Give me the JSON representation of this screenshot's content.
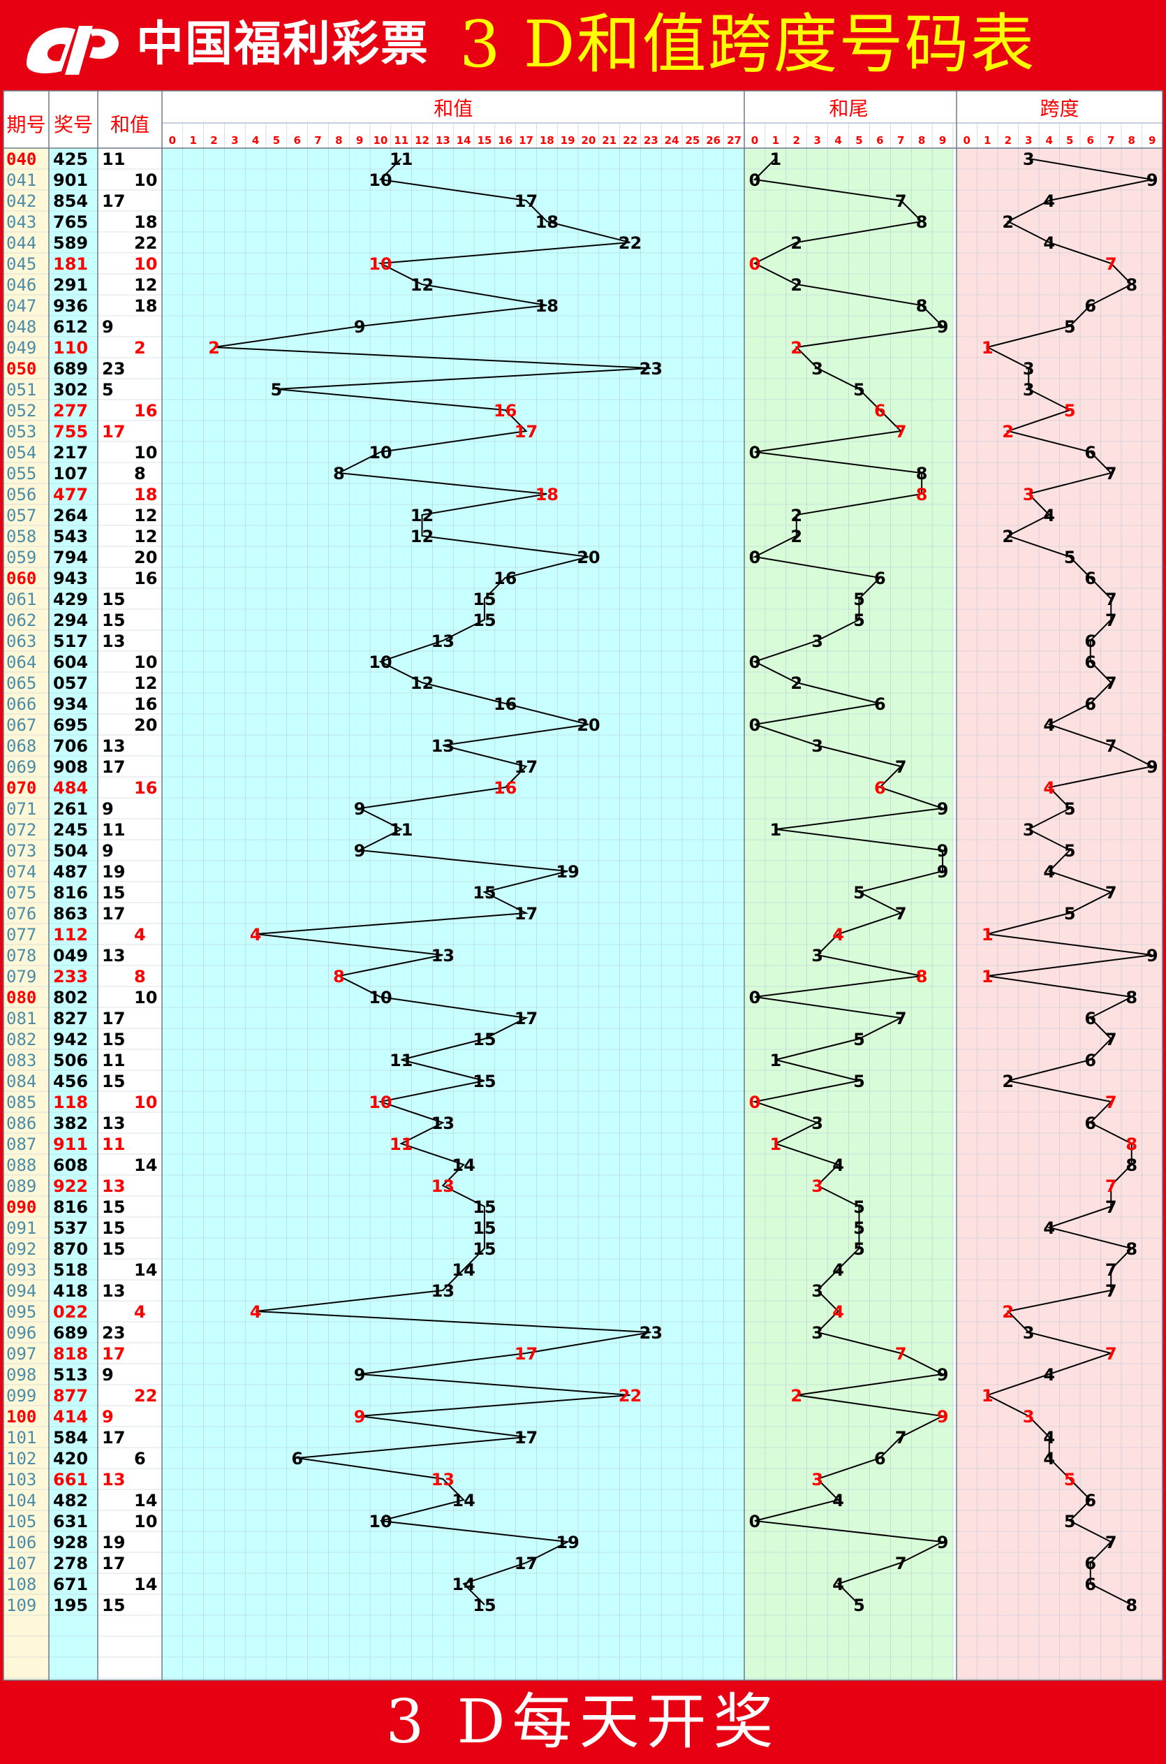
{
  "header": {
    "logo_text": "中国福利彩票",
    "title": "3 D和值跨度号码表"
  },
  "footer": {
    "text": "3 D每天开奖"
  },
  "colors": {
    "frame": "#e60012",
    "title_yellow": "#ffff00",
    "section_sum_bg": "#c8ffff",
    "section_tail_bg": "#d8fcd8",
    "section_span_bg": "#fde0e0",
    "left_panel_bg": "#fff8d8",
    "highlight_red": "#ff0000",
    "issue_blue": "#4a8ba8"
  },
  "chart_data": {
    "type": "table",
    "columns": {
      "issue": "期号",
      "number": "奖号",
      "sum": "和值"
    },
    "sections": {
      "sum": "和值",
      "tail": "和尾",
      "span": "跨度"
    },
    "sum_ticks": [
      "0",
      "1",
      "2",
      "3",
      "4",
      "5",
      "6",
      "7",
      "8",
      "9",
      "10",
      "11",
      "12",
      "13",
      "14",
      "15",
      "16",
      "17",
      "18",
      "19",
      "20",
      "21",
      "22",
      "23",
      "24",
      "25",
      "26",
      "27"
    ],
    "digit_ticks": [
      "0",
      "1",
      "2",
      "3",
      "4",
      "5",
      "6",
      "7",
      "8",
      "9"
    ],
    "rows": [
      {
        "issue": "040",
        "number": "425",
        "sum": 11,
        "tail": 1,
        "span": 3,
        "hl": false
      },
      {
        "issue": "041",
        "number": "901",
        "sum": 10,
        "tail": 0,
        "span": 9,
        "hl": false
      },
      {
        "issue": "042",
        "number": "854",
        "sum": 17,
        "tail": 7,
        "span": 4,
        "hl": false
      },
      {
        "issue": "043",
        "number": "765",
        "sum": 18,
        "tail": 8,
        "span": 2,
        "hl": false
      },
      {
        "issue": "044",
        "number": "589",
        "sum": 22,
        "tail": 2,
        "span": 4,
        "hl": false
      },
      {
        "issue": "045",
        "number": "181",
        "sum": 10,
        "tail": 0,
        "span": 7,
        "hl": true
      },
      {
        "issue": "046",
        "number": "291",
        "sum": 12,
        "tail": 2,
        "span": 8,
        "hl": false
      },
      {
        "issue": "047",
        "number": "936",
        "sum": 18,
        "tail": 8,
        "span": 6,
        "hl": false
      },
      {
        "issue": "048",
        "number": "612",
        "sum": 9,
        "tail": 9,
        "span": 5,
        "hl": false
      },
      {
        "issue": "049",
        "number": "110",
        "sum": 2,
        "tail": 2,
        "span": 1,
        "hl": true
      },
      {
        "issue": "050",
        "number": "689",
        "sum": 23,
        "tail": 3,
        "span": 3,
        "hl": false
      },
      {
        "issue": "051",
        "number": "302",
        "sum": 5,
        "tail": 5,
        "span": 3,
        "hl": false
      },
      {
        "issue": "052",
        "number": "277",
        "sum": 16,
        "tail": 6,
        "span": 5,
        "hl": true
      },
      {
        "issue": "053",
        "number": "755",
        "sum": 17,
        "tail": 7,
        "span": 2,
        "hl": true
      },
      {
        "issue": "054",
        "number": "217",
        "sum": 10,
        "tail": 0,
        "span": 6,
        "hl": false
      },
      {
        "issue": "055",
        "number": "107",
        "sum": 8,
        "tail": 8,
        "span": 7,
        "hl": false
      },
      {
        "issue": "056",
        "number": "477",
        "sum": 18,
        "tail": 8,
        "span": 3,
        "hl": true
      },
      {
        "issue": "057",
        "number": "264",
        "sum": 12,
        "tail": 2,
        "span": 4,
        "hl": false
      },
      {
        "issue": "058",
        "number": "543",
        "sum": 12,
        "tail": 2,
        "span": 2,
        "hl": false
      },
      {
        "issue": "059",
        "number": "794",
        "sum": 20,
        "tail": 0,
        "span": 5,
        "hl": false
      },
      {
        "issue": "060",
        "number": "943",
        "sum": 16,
        "tail": 6,
        "span": 6,
        "hl": false
      },
      {
        "issue": "061",
        "number": "429",
        "sum": 15,
        "tail": 5,
        "span": 7,
        "hl": false
      },
      {
        "issue": "062",
        "number": "294",
        "sum": 15,
        "tail": 5,
        "span": 7,
        "hl": false
      },
      {
        "issue": "063",
        "number": "517",
        "sum": 13,
        "tail": 3,
        "span": 6,
        "hl": false
      },
      {
        "issue": "064",
        "number": "604",
        "sum": 10,
        "tail": 0,
        "span": 6,
        "hl": false
      },
      {
        "issue": "065",
        "number": "057",
        "sum": 12,
        "tail": 2,
        "span": 7,
        "hl": false
      },
      {
        "issue": "066",
        "number": "934",
        "sum": 16,
        "tail": 6,
        "span": 6,
        "hl": false
      },
      {
        "issue": "067",
        "number": "695",
        "sum": 20,
        "tail": 0,
        "span": 4,
        "hl": false
      },
      {
        "issue": "068",
        "number": "706",
        "sum": 13,
        "tail": 3,
        "span": 7,
        "hl": false
      },
      {
        "issue": "069",
        "number": "908",
        "sum": 17,
        "tail": 7,
        "span": 9,
        "hl": false
      },
      {
        "issue": "070",
        "number": "484",
        "sum": 16,
        "tail": 6,
        "span": 4,
        "hl": true
      },
      {
        "issue": "071",
        "number": "261",
        "sum": 9,
        "tail": 9,
        "span": 5,
        "hl": false
      },
      {
        "issue": "072",
        "number": "245",
        "sum": 11,
        "tail": 1,
        "span": 3,
        "hl": false
      },
      {
        "issue": "073",
        "number": "504",
        "sum": 9,
        "tail": 9,
        "span": 5,
        "hl": false
      },
      {
        "issue": "074",
        "number": "487",
        "sum": 19,
        "tail": 9,
        "span": 4,
        "hl": false
      },
      {
        "issue": "075",
        "number": "816",
        "sum": 15,
        "tail": 5,
        "span": 7,
        "hl": false
      },
      {
        "issue": "076",
        "number": "863",
        "sum": 17,
        "tail": 7,
        "span": 5,
        "hl": false
      },
      {
        "issue": "077",
        "number": "112",
        "sum": 4,
        "tail": 4,
        "span": 1,
        "hl": true
      },
      {
        "issue": "078",
        "number": "049",
        "sum": 13,
        "tail": 3,
        "span": 9,
        "hl": false
      },
      {
        "issue": "079",
        "number": "233",
        "sum": 8,
        "tail": 8,
        "span": 1,
        "hl": true
      },
      {
        "issue": "080",
        "number": "802",
        "sum": 10,
        "tail": 0,
        "span": 8,
        "hl": false
      },
      {
        "issue": "081",
        "number": "827",
        "sum": 17,
        "tail": 7,
        "span": 6,
        "hl": false
      },
      {
        "issue": "082",
        "number": "942",
        "sum": 15,
        "tail": 5,
        "span": 7,
        "hl": false
      },
      {
        "issue": "083",
        "number": "506",
        "sum": 11,
        "tail": 1,
        "span": 6,
        "hl": false
      },
      {
        "issue": "084",
        "number": "456",
        "sum": 15,
        "tail": 5,
        "span": 2,
        "hl": false
      },
      {
        "issue": "085",
        "number": "118",
        "sum": 10,
        "tail": 0,
        "span": 7,
        "hl": true
      },
      {
        "issue": "086",
        "number": "382",
        "sum": 13,
        "tail": 3,
        "span": 6,
        "hl": false
      },
      {
        "issue": "087",
        "number": "911",
        "sum": 11,
        "tail": 1,
        "span": 8,
        "hl": true
      },
      {
        "issue": "088",
        "number": "608",
        "sum": 14,
        "tail": 4,
        "span": 8,
        "hl": false
      },
      {
        "issue": "089",
        "number": "922",
        "sum": 13,
        "tail": 3,
        "span": 7,
        "hl": true
      },
      {
        "issue": "090",
        "number": "816",
        "sum": 15,
        "tail": 5,
        "span": 7,
        "hl": false
      },
      {
        "issue": "091",
        "number": "537",
        "sum": 15,
        "tail": 5,
        "span": 4,
        "hl": false
      },
      {
        "issue": "092",
        "number": "870",
        "sum": 15,
        "tail": 5,
        "span": 8,
        "hl": false
      },
      {
        "issue": "093",
        "number": "518",
        "sum": 14,
        "tail": 4,
        "span": 7,
        "hl": false
      },
      {
        "issue": "094",
        "number": "418",
        "sum": 13,
        "tail": 3,
        "span": 7,
        "hl": false
      },
      {
        "issue": "095",
        "number": "022",
        "sum": 4,
        "tail": 4,
        "span": 2,
        "hl": true
      },
      {
        "issue": "096",
        "number": "689",
        "sum": 23,
        "tail": 3,
        "span": 3,
        "hl": false
      },
      {
        "issue": "097",
        "number": "818",
        "sum": 17,
        "tail": 7,
        "span": 7,
        "hl": true
      },
      {
        "issue": "098",
        "number": "513",
        "sum": 9,
        "tail": 9,
        "span": 4,
        "hl": false
      },
      {
        "issue": "099",
        "number": "877",
        "sum": 22,
        "tail": 2,
        "span": 1,
        "hl": true
      },
      {
        "issue": "100",
        "number": "414",
        "sum": 9,
        "tail": 9,
        "span": 3,
        "hl": true
      },
      {
        "issue": "101",
        "number": "584",
        "sum": 17,
        "tail": 7,
        "span": 4,
        "hl": false
      },
      {
        "issue": "102",
        "number": "420",
        "sum": 6,
        "tail": 6,
        "span": 4,
        "hl": false
      },
      {
        "issue": "103",
        "number": "661",
        "sum": 13,
        "tail": 3,
        "span": 5,
        "hl": true
      },
      {
        "issue": "104",
        "number": "482",
        "sum": 14,
        "tail": 4,
        "span": 6,
        "hl": false
      },
      {
        "issue": "105",
        "number": "631",
        "sum": 10,
        "tail": 0,
        "span": 5,
        "hl": false
      },
      {
        "issue": "106",
        "number": "928",
        "sum": 19,
        "tail": 9,
        "span": 7,
        "hl": false
      },
      {
        "issue": "107",
        "number": "278",
        "sum": 17,
        "tail": 7,
        "span": 6,
        "hl": false
      },
      {
        "issue": "108",
        "number": "671",
        "sum": 14,
        "tail": 4,
        "span": 6,
        "hl": false
      },
      {
        "issue": "109",
        "number": "195",
        "sum": 15,
        "tail": 5,
        "span": 8,
        "hl": false
      }
    ],
    "empty_rows_after": 3
  }
}
